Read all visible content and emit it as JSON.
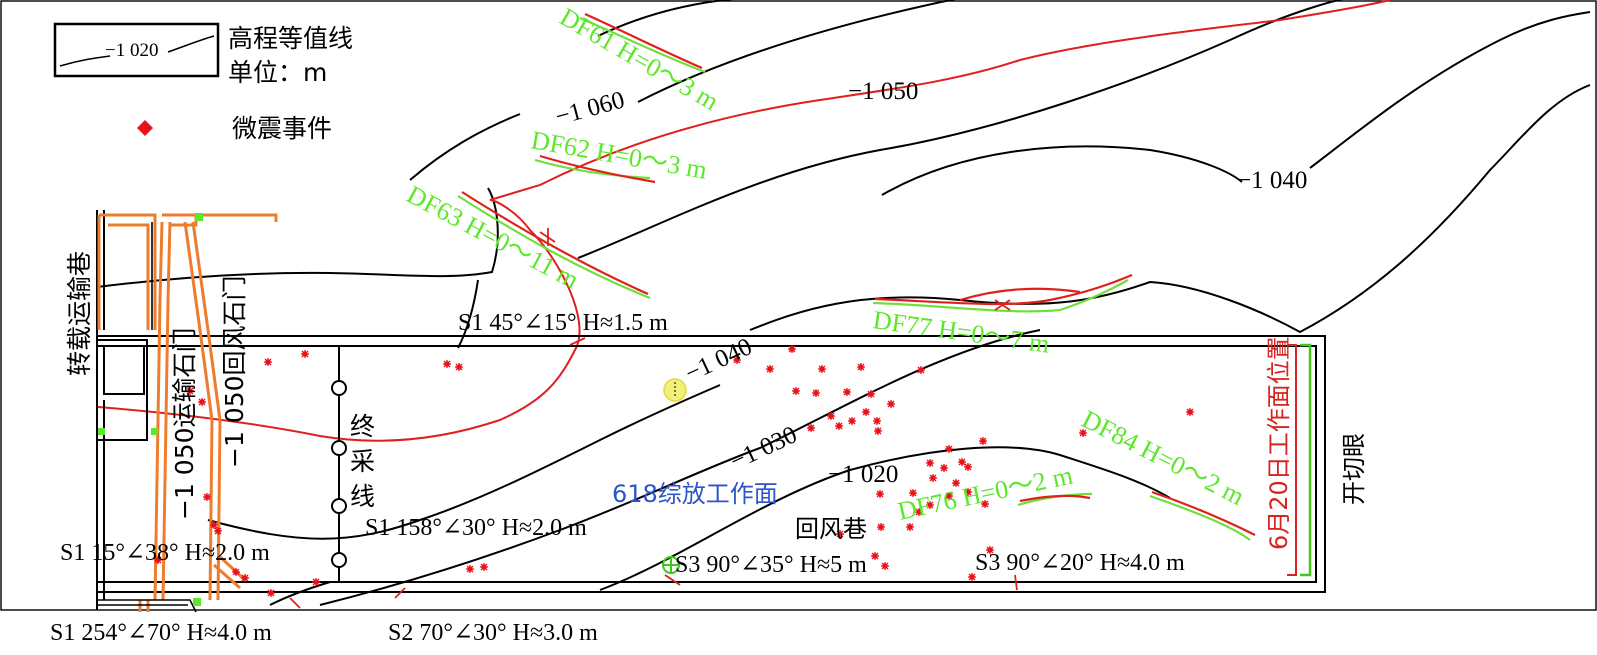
{
  "legend": {
    "contour_sample": "−1 020",
    "contour_label": "高程等值线",
    "unit_label": "单位：m",
    "microseismic_label": "微震事件"
  },
  "contour_labels": {
    "c1060": "−1 060",
    "c1050": "−1 050",
    "c1040_top": "−1 040",
    "c1040_mid": "−1 040",
    "c1030": "−1 030",
    "c1020": "−1 020"
  },
  "fault_labels": {
    "df61": "DF61 H=0～3 m",
    "df62": "DF62 H=0～3 m",
    "df63": "DF63 H=0～11 m",
    "df77": "DF77 H=0～7 m",
    "df76": "DF76 H=0～2 m",
    "df84": "DF84 H=0～2 m"
  },
  "structure_labels": {
    "s1_top": "S1 45°∠15° H≈1.5 m",
    "s1_mid": "S1 158°∠30° H≈2.0 m",
    "s1_left": "S1 15°∠38° H≈2.0 m",
    "s3_a": "S3 90°∠35° H≈5 m",
    "s3_b": "S3 90°∠20° H≈4.0 m",
    "s1_bottom": "S1 254°∠70° H≈4.0 m",
    "s2_bottom": "S2 70°∠30° H≈3.0 m"
  },
  "roadway_labels": {
    "transfer": "转载运输巷",
    "transport_gate": "−1 050运输石门",
    "return_gate": "−1 050回风石门",
    "stop_line": "终采线",
    "workface": "618综放工作面",
    "return_roadway": "回风巷",
    "face_position": "6月20日工作面位置",
    "open_cut": "开切眼"
  },
  "colors": {
    "contour": "#000000",
    "red_contour": "#e0201c",
    "fault": "#6ee03a",
    "fault_label": "#5ce82a",
    "event": "#e8131a",
    "roadway_orange": "#ee7c2c",
    "workface_text": "#2b55c8",
    "face_line": "#d62520"
  },
  "events": [
    [
      268,
      362
    ],
    [
      305,
      354
    ],
    [
      447,
      364
    ],
    [
      459,
      367
    ],
    [
      190,
      391
    ],
    [
      202,
      402
    ],
    [
      207,
      497
    ],
    [
      214,
      525
    ],
    [
      218,
      531
    ],
    [
      236,
      572
    ],
    [
      245,
      578
    ],
    [
      158,
      560
    ],
    [
      316,
      582
    ],
    [
      271,
      593
    ],
    [
      470,
      569
    ],
    [
      484,
      567
    ],
    [
      792,
      349
    ],
    [
      737,
      360
    ],
    [
      822,
      369
    ],
    [
      770,
      369
    ],
    [
      861,
      367
    ],
    [
      921,
      370
    ],
    [
      796,
      391
    ],
    [
      816,
      393
    ],
    [
      847,
      392
    ],
    [
      871,
      394
    ],
    [
      891,
      404
    ],
    [
      866,
      412
    ],
    [
      831,
      416
    ],
    [
      839,
      426
    ],
    [
      852,
      421
    ],
    [
      811,
      428
    ],
    [
      877,
      421
    ],
    [
      878,
      431
    ],
    [
      1083,
      433
    ],
    [
      1190,
      412
    ],
    [
      949,
      449
    ],
    [
      983,
      441
    ],
    [
      930,
      463
    ],
    [
      944,
      468
    ],
    [
      962,
      462
    ],
    [
      968,
      467
    ],
    [
      933,
      478
    ],
    [
      956,
      483
    ],
    [
      949,
      496
    ],
    [
      968,
      492
    ],
    [
      880,
      494
    ],
    [
      913,
      493
    ],
    [
      919,
      512
    ],
    [
      930,
      505
    ],
    [
      985,
      504
    ],
    [
      881,
      527
    ],
    [
      910,
      527
    ],
    [
      840,
      534
    ],
    [
      875,
      556
    ],
    [
      885,
      566
    ],
    [
      972,
      577
    ],
    [
      990,
      550
    ]
  ]
}
